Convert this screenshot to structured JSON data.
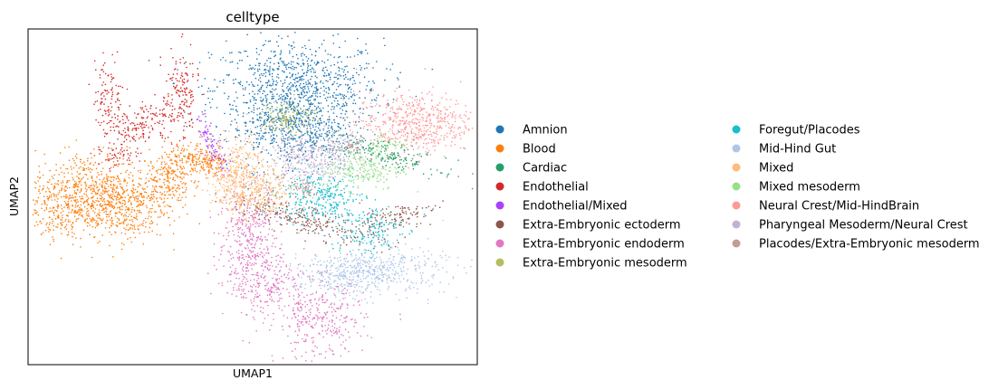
{
  "chart_data": {
    "type": "scatter",
    "title": "celltype",
    "xlabel": "UMAP1",
    "ylabel": "UMAP2",
    "ticks_shown": false,
    "grid": false,
    "legend_position": "right, two columns",
    "legend_entries": [
      {
        "name": "Amnion",
        "color": "#1f77b4"
      },
      {
        "name": "Blood",
        "color": "#ff7f0e"
      },
      {
        "name": "Cardiac",
        "color": "#279e68"
      },
      {
        "name": "Endothelial",
        "color": "#d62728"
      },
      {
        "name": "Endothelial/Mixed",
        "color": "#aa40fc"
      },
      {
        "name": "Extra-Embryonic ectoderm",
        "color": "#8c564b"
      },
      {
        "name": "Extra-Embryonic endoderm",
        "color": "#e377c2"
      },
      {
        "name": "Extra-Embryonic mesoderm",
        "color": "#b5bd61"
      },
      {
        "name": "Foregut/Placodes",
        "color": "#17becf"
      },
      {
        "name": "Mid-Hind Gut",
        "color": "#aec7e8"
      },
      {
        "name": "Mixed",
        "color": "#ffbb78"
      },
      {
        "name": "Mixed mesoderm",
        "color": "#98df8a"
      },
      {
        "name": "Neural Crest/Mid-HindBrain",
        "color": "#ff9896"
      },
      {
        "name": "Pharyngeal Mesoderm/Neural Crest",
        "color": "#c5b0d5"
      },
      {
        "name": "Placodes/Extra-Embryonic mesoderm",
        "color": "#c49c94"
      }
    ],
    "series": [
      {
        "name": "Amnion",
        "clusters": [
          {
            "cx": 0.6,
            "cy": 0.82,
            "sx": 0.095,
            "sy": 0.075,
            "n": 900
          },
          {
            "cx": 0.56,
            "cy": 0.7,
            "sx": 0.055,
            "sy": 0.06,
            "n": 300
          },
          {
            "cx": 0.63,
            "cy": 0.68,
            "sx": 0.045,
            "sy": 0.05,
            "n": 200
          }
        ]
      },
      {
        "name": "Blood",
        "clusters": [
          {
            "cx": 0.14,
            "cy": 0.52,
            "sx": 0.065,
            "sy": 0.06,
            "n": 500
          },
          {
            "cx": 0.2,
            "cy": 0.47,
            "sx": 0.055,
            "sy": 0.05,
            "n": 400
          },
          {
            "cx": 0.07,
            "cy": 0.47,
            "sx": 0.04,
            "sy": 0.05,
            "n": 200
          },
          {
            "cx": 0.31,
            "cy": 0.55,
            "sx": 0.025,
            "sy": 0.04,
            "n": 180
          },
          {
            "cx": 0.36,
            "cy": 0.61,
            "sx": 0.028,
            "sy": 0.025,
            "n": 150
          },
          {
            "cx": 0.41,
            "cy": 0.59,
            "sx": 0.018,
            "sy": 0.025,
            "n": 90
          }
        ]
      },
      {
        "name": "Cardiac",
        "clusters": [
          {
            "cx": 0.79,
            "cy": 0.63,
            "sx": 0.07,
            "sy": 0.018,
            "n": 200,
            "angle": -0.35
          }
        ]
      },
      {
        "name": "Endothelial",
        "clusters": [
          {
            "cx": 0.23,
            "cy": 0.7,
            "sx": 0.03,
            "sy": 0.03,
            "n": 100
          },
          {
            "cx": 0.18,
            "cy": 0.79,
            "sx": 0.018,
            "sy": 0.06,
            "n": 110
          },
          {
            "cx": 0.34,
            "cy": 0.82,
            "sx": 0.02,
            "sy": 0.06,
            "n": 130
          },
          {
            "cx": 0.3,
            "cy": 0.73,
            "sx": 0.035,
            "sy": 0.03,
            "n": 90
          },
          {
            "cx": 0.2,
            "cy": 0.62,
            "sx": 0.02,
            "sy": 0.02,
            "n": 50
          }
        ]
      },
      {
        "name": "Endothelial/Mixed",
        "clusters": [
          {
            "cx": 0.41,
            "cy": 0.66,
            "sx": 0.01,
            "sy": 0.045,
            "n": 90,
            "angle": 0.3
          }
        ]
      },
      {
        "name": "Extra-Embryonic ectoderm",
        "clusters": [
          {
            "cx": 0.62,
            "cy": 0.43,
            "sx": 0.09,
            "sy": 0.02,
            "n": 260,
            "angle": -0.35
          },
          {
            "cx": 0.81,
            "cy": 0.44,
            "sx": 0.05,
            "sy": 0.018,
            "n": 120,
            "angle": 0.2
          }
        ]
      },
      {
        "name": "Extra-Embryonic endoderm",
        "clusters": [
          {
            "cx": 0.49,
            "cy": 0.37,
            "sx": 0.035,
            "sy": 0.09,
            "n": 400
          },
          {
            "cx": 0.54,
            "cy": 0.24,
            "sx": 0.04,
            "sy": 0.05,
            "n": 200
          },
          {
            "cx": 0.65,
            "cy": 0.13,
            "sx": 0.05,
            "sy": 0.06,
            "n": 320
          }
        ]
      },
      {
        "name": "Extra-Embryonic mesoderm",
        "clusters": [
          {
            "cx": 0.58,
            "cy": 0.74,
            "sx": 0.03,
            "sy": 0.025,
            "n": 140
          }
        ]
      },
      {
        "name": "Foregut/Placodes",
        "clusters": [
          {
            "cx": 0.65,
            "cy": 0.5,
            "sx": 0.05,
            "sy": 0.035,
            "n": 300
          },
          {
            "cx": 0.75,
            "cy": 0.4,
            "sx": 0.04,
            "sy": 0.04,
            "n": 160
          }
        ]
      },
      {
        "name": "Mid-Hind Gut",
        "clusters": [
          {
            "cx": 0.78,
            "cy": 0.28,
            "sx": 0.075,
            "sy": 0.035,
            "n": 450
          },
          {
            "cx": 0.68,
            "cy": 0.26,
            "sx": 0.04,
            "sy": 0.03,
            "n": 150
          }
        ]
      },
      {
        "name": "Mixed",
        "clusters": [
          {
            "cx": 0.47,
            "cy": 0.56,
            "sx": 0.03,
            "sy": 0.06,
            "n": 450
          },
          {
            "cx": 0.53,
            "cy": 0.51,
            "sx": 0.03,
            "sy": 0.04,
            "n": 180
          }
        ]
      },
      {
        "name": "Mixed mesoderm",
        "clusters": [
          {
            "cx": 0.74,
            "cy": 0.58,
            "sx": 0.045,
            "sy": 0.03,
            "n": 220
          },
          {
            "cx": 0.8,
            "cy": 0.66,
            "sx": 0.025,
            "sy": 0.02,
            "n": 60
          }
        ]
      },
      {
        "name": "Neural Crest/Mid-HindBrain",
        "clusters": [
          {
            "cx": 0.86,
            "cy": 0.72,
            "sx": 0.065,
            "sy": 0.045,
            "n": 550
          }
        ]
      },
      {
        "name": "Pharyngeal Mesoderm/Neural Crest",
        "clusters": [
          {
            "cx": 0.63,
            "cy": 0.62,
            "sx": 0.045,
            "sy": 0.04,
            "n": 330
          },
          {
            "cx": 0.71,
            "cy": 0.66,
            "sx": 0.02,
            "sy": 0.02,
            "n": 60
          }
        ]
      },
      {
        "name": "Placodes/Extra-Embryonic mesoderm",
        "clusters": [
          {
            "cx": 0.62,
            "cy": 0.52,
            "sx": 0.015,
            "sy": 0.012,
            "n": 50
          },
          {
            "cx": 0.72,
            "cy": 0.65,
            "sx": 0.01,
            "sy": 0.01,
            "n": 20
          }
        ]
      }
    ]
  }
}
